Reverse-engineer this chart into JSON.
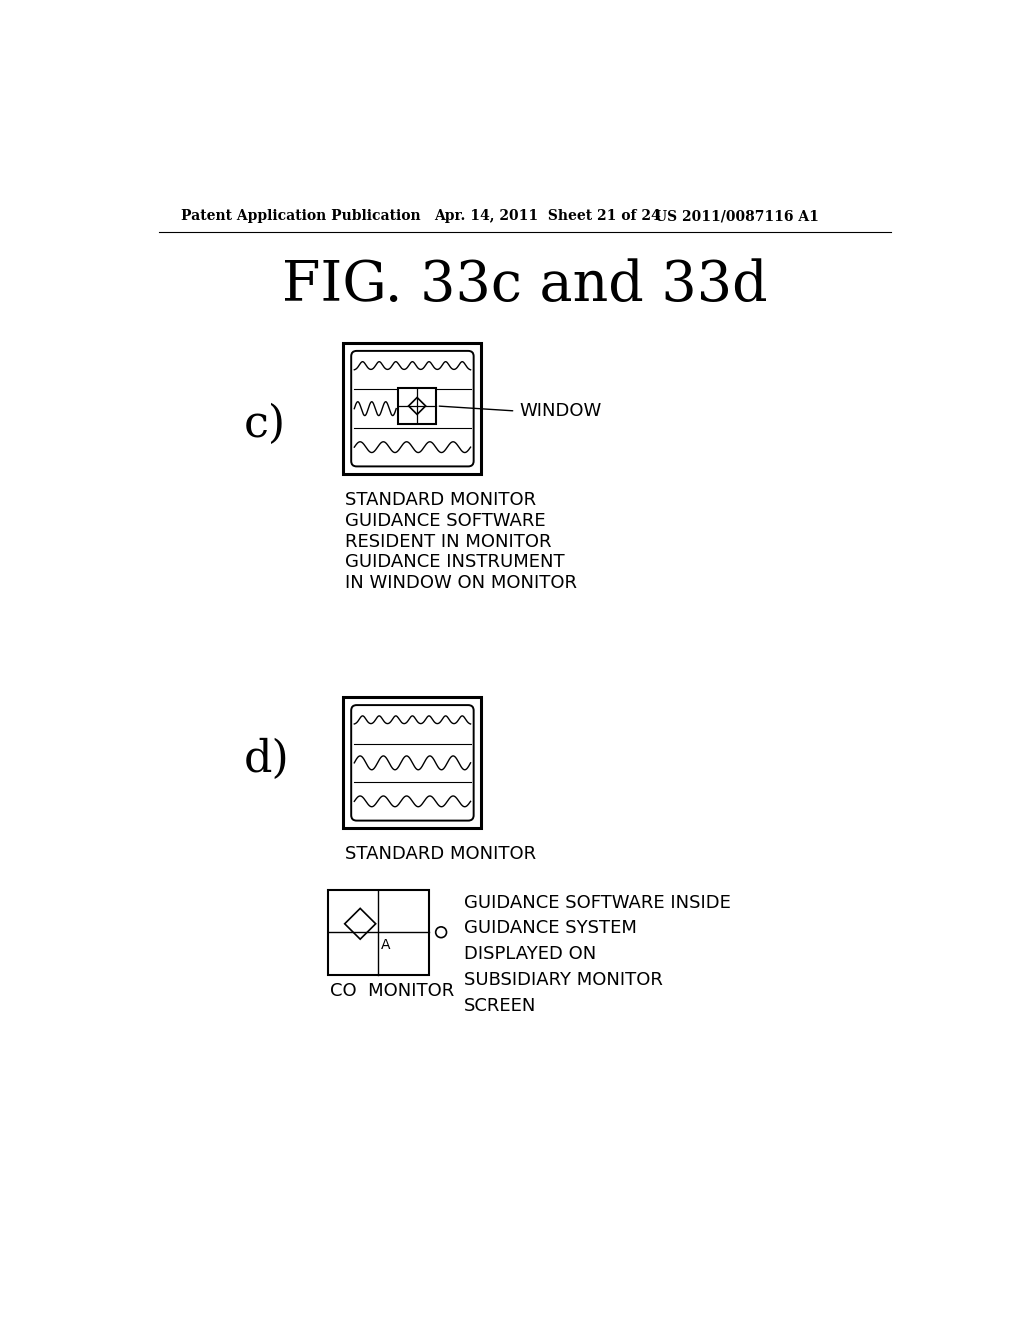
{
  "title": "FIG. 33c and 33d",
  "header_left": "Patent Application Publication",
  "header_mid": "Apr. 14, 2011  Sheet 21 of 24",
  "header_right": "US 2011/0087116 A1",
  "label_c": "c)",
  "label_d": "d)",
  "label_window": "WINDOW",
  "label_c_line1": "STANDARD MONITOR",
  "label_c_line2": "GUIDANCE SOFTWARE",
  "label_c_line3": "RESIDENT IN MONITOR",
  "label_c_line4": "GUIDANCE INSTRUMENT",
  "label_c_line5": "IN WINDOW ON MONITOR",
  "label_d_line1": "STANDARD MONITOR",
  "label_co": "CO  MONITOR",
  "label_guidance": "GUIDANCE SOFTWARE INSIDE\nGUIDANCE SYSTEM\nDISPLAYED ON\nSUBSIDIARY MONITOR\nSCREEN",
  "bg_color": "#ffffff",
  "line_color": "#000000"
}
